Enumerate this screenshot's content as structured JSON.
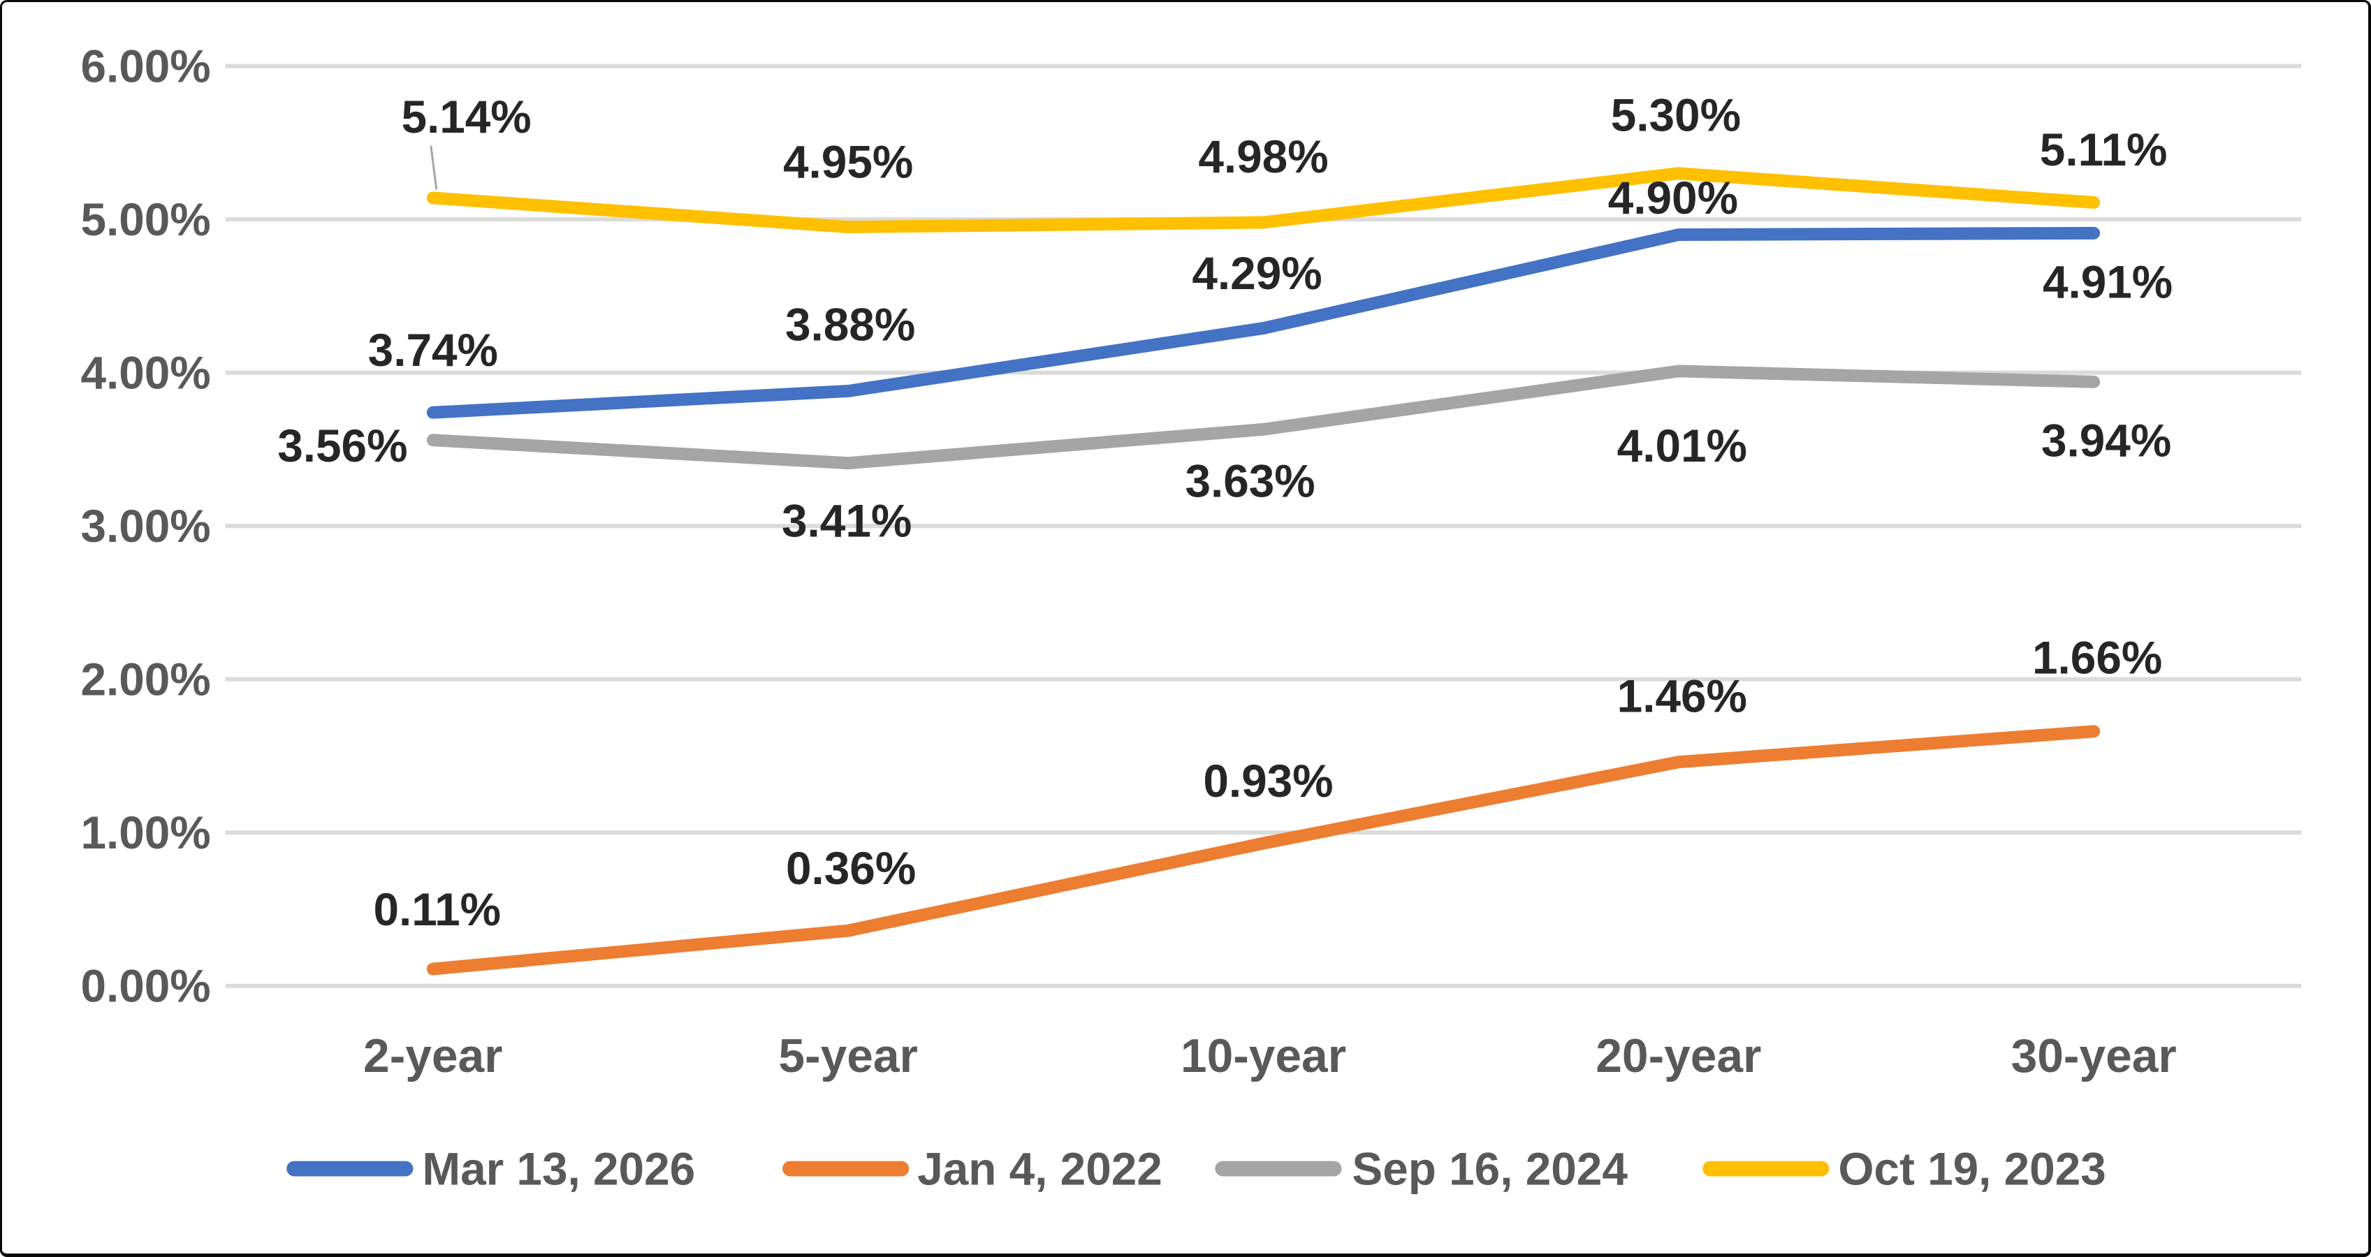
{
  "chart_data": {
    "type": "line",
    "title": "",
    "categories": [
      "2-year",
      "5-year",
      "10-year",
      "20-year",
      "30-year"
    ],
    "series": [
      {
        "name": "Mar 13, 2026",
        "color": "#4472C4",
        "values": [
          3.74,
          3.88,
          4.29,
          4.9,
          4.91
        ],
        "labels": [
          "3.74%",
          "3.88%",
          "4.29%",
          "4.90%",
          "4.91%"
        ],
        "label_offsets": [
          [
            0,
            -90
          ],
          [
            3,
            -96
          ],
          [
            -9,
            -79
          ],
          [
            -8,
            -53
          ],
          [
            20,
            70
          ]
        ]
      },
      {
        "name": "Jan 4, 2022",
        "color": "#ED7D31",
        "values": [
          0.11,
          0.36,
          0.93,
          1.46,
          1.66
        ],
        "labels": [
          "0.11%",
          "0.36%",
          "0.93%",
          "1.46%",
          "1.66%"
        ],
        "label_offsets": [
          [
            6,
            -86
          ],
          [
            4,
            -90
          ],
          [
            7,
            -90
          ],
          [
            5,
            -95
          ],
          [
            5,
            -106
          ]
        ]
      },
      {
        "name": "Sep 16, 2024",
        "color": "#A5A5A5",
        "values": [
          3.56,
          3.41,
          3.63,
          4.01,
          3.94
        ],
        "labels": [
          "3.56%",
          "3.41%",
          "3.63%",
          "4.01%",
          "3.94%"
        ],
        "label_offsets": [
          [
            -130,
            8
          ],
          [
            -2,
            83
          ],
          [
            -19,
            74
          ],
          [
            5,
            107
          ],
          [
            18,
            84
          ]
        ]
      },
      {
        "name": "Oct 19, 2023",
        "color": "#FFC000",
        "values": [
          5.14,
          4.95,
          4.98,
          5.3,
          5.11
        ],
        "labels": [
          "5.14%",
          "4.95%",
          "4.98%",
          "5.30%",
          "5.11%"
        ],
        "label_offsets": [
          [
            48,
            -117
          ],
          [
            0,
            -94
          ],
          [
            0,
            -95
          ],
          [
            -4,
            -84
          ],
          [
            14,
            -76
          ]
        ],
        "leader_line_on_point": 0
      }
    ],
    "y_axis": {
      "min": 0,
      "max": 6,
      "step": 1,
      "tick_labels": [
        "0.00%",
        "1.00%",
        "2.00%",
        "3.00%",
        "4.00%",
        "5.00%",
        "6.00%"
      ]
    },
    "grid": true,
    "legend_position": "bottom",
    "colors": {
      "gridline": "#DBDBDB",
      "axis_text": "#595959",
      "data_label_text": "#262626",
      "leader_line": "#A6A6A6",
      "background": "#FFFFFF",
      "frame_border": "#0A0A0A"
    }
  }
}
